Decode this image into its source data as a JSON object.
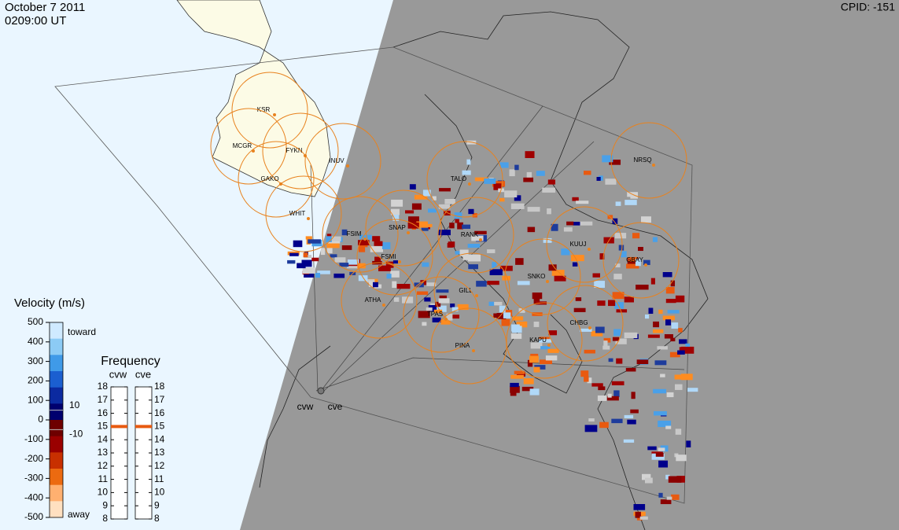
{
  "header": {
    "date": "October  7 2011",
    "time": "0209:00 UT",
    "cpid": "CPID:  -151"
  },
  "velocity_scale": {
    "title": "Velocity (m/s)",
    "ticks": [
      500,
      400,
      300,
      200,
      100,
      0,
      -100,
      -200,
      -300,
      -400,
      -500
    ],
    "toward": "toward",
    "away": "away",
    "inner_ticks": [
      10,
      -10
    ]
  },
  "frequency": {
    "title": "Frequency",
    "radars": [
      "cvw",
      "cve"
    ],
    "ticks": [
      18,
      17,
      16,
      15,
      14,
      13,
      12,
      11,
      10,
      9,
      8
    ],
    "current": [
      15,
      15
    ]
  },
  "map": {
    "radars": [
      "cvw",
      "cve"
    ],
    "stations": [
      "KSR",
      "MCGR",
      "FYKN",
      "INUV",
      "GAKO",
      "WHIT",
      "FSIM",
      "SNAP",
      "FSMI",
      "RANK",
      "TALO",
      "KUUJ",
      "GBAY",
      "SNKO",
      "GILL",
      "ATHA",
      "TPAS",
      "PINA",
      "KAPU",
      "CHBG",
      "NRSQ"
    ]
  }
}
